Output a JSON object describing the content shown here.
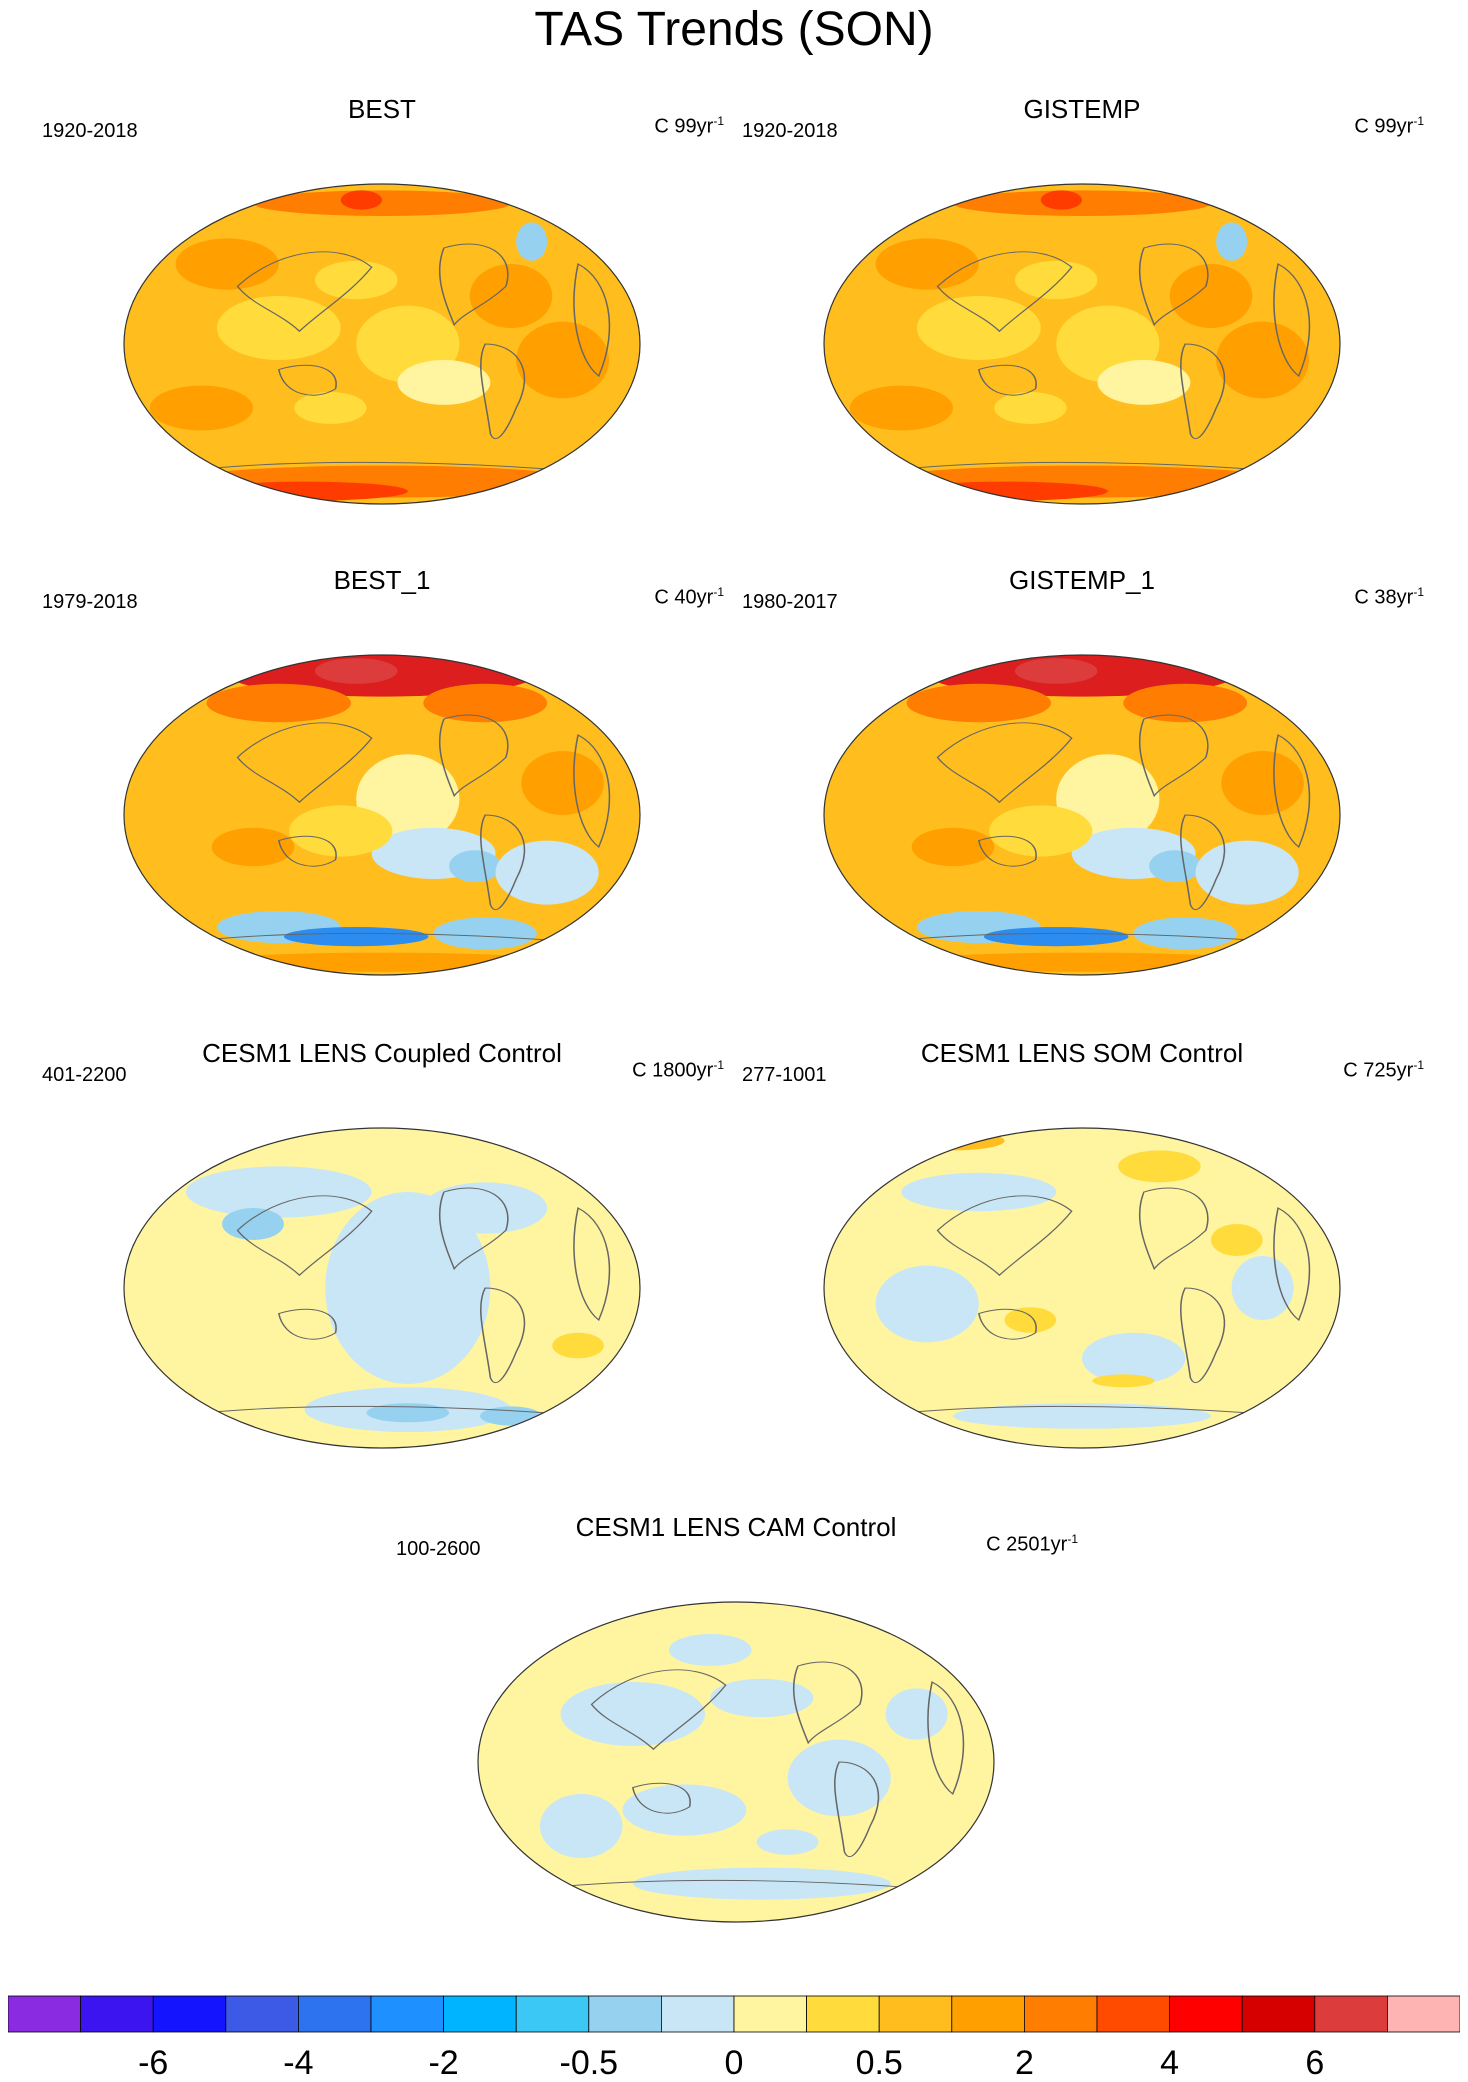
{
  "title": "TAS Trends (SON)",
  "panels": [
    {
      "title": "BEST",
      "years": "1920-2018",
      "count": "C 99yr",
      "unit_sup": "-1",
      "scheme": "warm"
    },
    {
      "title": "GISTEMP",
      "years": "1920-2018",
      "count": "C 99yr",
      "unit_sup": "-1",
      "scheme": "warm"
    },
    {
      "title": "BEST_1",
      "years": "1979-2018",
      "count": "C 40yr",
      "unit_sup": "-1",
      "scheme": "warm_arctic"
    },
    {
      "title": "GISTEMP_1",
      "years": "1980-2017",
      "count": "C 38yr",
      "unit_sup": "-1",
      "scheme": "warm_arctic"
    },
    {
      "title": "CESM1 LENS Coupled Control",
      "years": "401-2200",
      "count": "C 1800yr",
      "unit_sup": "-1",
      "scheme": "neutral_blue"
    },
    {
      "title": "CESM1 LENS SOM Control",
      "years": "277-1001",
      "count": "C 725yr",
      "unit_sup": "-1",
      "scheme": "neutral_yellow"
    },
    {
      "title": "CESM1 LENS CAM Control",
      "years": "100-2600",
      "count": "C 2501yr",
      "unit_sup": "-1",
      "scheme": "neutral_mix"
    }
  ],
  "colorbar": {
    "colors": [
      "#8a2be2",
      "#3b14f0",
      "#1414ff",
      "#3c5ae6",
      "#2d73f0",
      "#1e90ff",
      "#00b4ff",
      "#3cc8f5",
      "#96d2f0",
      "#c8e6f5",
      "#fff5a0",
      "#ffdc3c",
      "#ffbe1e",
      "#ffa000",
      "#ff7d00",
      "#ff4b00",
      "#ff0000",
      "#d70000",
      "#dc3c3c",
      "#ffb4b4"
    ],
    "labels": [
      "-6",
      "-4",
      "-2",
      "-0.5",
      "0",
      "0.5",
      "2",
      "4",
      "6"
    ]
  }
}
